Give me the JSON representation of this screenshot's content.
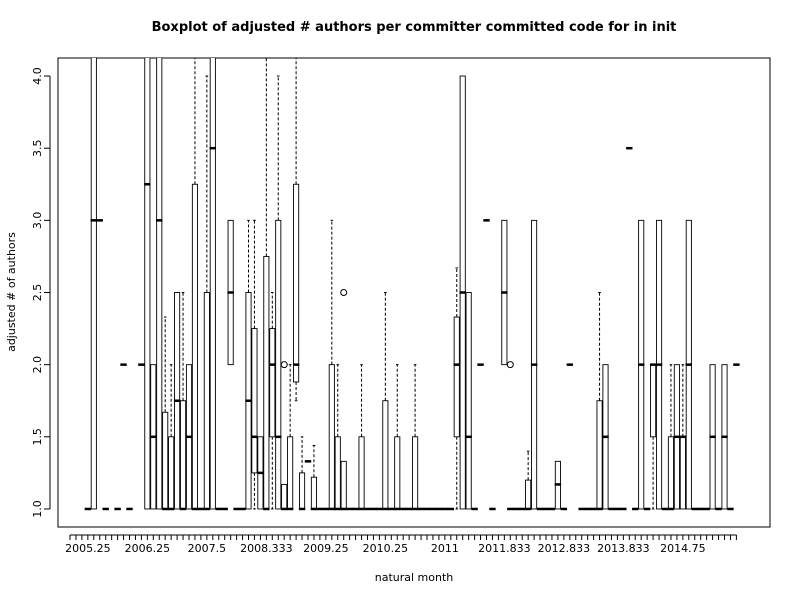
{
  "chart_data": {
    "type": "boxplot",
    "title": "Boxplot of adjusted # authors per committer committed code for in init",
    "x_label": "natural month",
    "y_label": "adjusted # of authors",
    "ylim": [
      0.875,
      4.125
    ],
    "yticks": [
      {
        "value": 1,
        "label": "1.0"
      },
      {
        "value": 1.5,
        "label": "1.5"
      },
      {
        "value": 2,
        "label": "2.0"
      },
      {
        "value": 2.5,
        "label": "2.5"
      },
      {
        "value": 3,
        "label": "3.0"
      },
      {
        "value": 3.5,
        "label": "3.5"
      },
      {
        "value": 4,
        "label": "4.0"
      }
    ],
    "categories": [
      null,
      null,
      null,
      "2005.25",
      null,
      null,
      null,
      null,
      null,
      null,
      null,
      null,
      null,
      "2006.25",
      null,
      null,
      null,
      null,
      null,
      null,
      null,
      null,
      null,
      "2007.5",
      null,
      null,
      null,
      null,
      null,
      null,
      null,
      null,
      null,
      "2008.333",
      null,
      null,
      null,
      null,
      null,
      null,
      null,
      null,
      null,
      "2009.25",
      null,
      null,
      null,
      null,
      null,
      null,
      null,
      null,
      null,
      "2010.25",
      null,
      null,
      null,
      null,
      null,
      null,
      null,
      null,
      null,
      "2011",
      null,
      null,
      null,
      null,
      null,
      null,
      null,
      null,
      null,
      "2011.833",
      null,
      null,
      null,
      null,
      null,
      null,
      null,
      null,
      null,
      "2012.833",
      null,
      null,
      null,
      null,
      null,
      null,
      null,
      null,
      null,
      "2013.833",
      null,
      null,
      null,
      null,
      null,
      null,
      null,
      null,
      null,
      "2014.75",
      null,
      null,
      null,
      null,
      null,
      null,
      null,
      null,
      null
    ],
    "boxes": [
      null,
      null,
      null,
      [
        1,
        1,
        1,
        1,
        1
      ],
      [
        1,
        1,
        3,
        6,
        6
      ],
      [
        3,
        3,
        3,
        3,
        3
      ],
      [
        1,
        1,
        1,
        1,
        1
      ],
      null,
      [
        1,
        1,
        1,
        1,
        1
      ],
      [
        2,
        2,
        2,
        2,
        2
      ],
      [
        1,
        1,
        1,
        1,
        1
      ],
      null,
      [
        2,
        2,
        2,
        2,
        2
      ],
      [
        1,
        1,
        3.25,
        6,
        6
      ],
      [
        1,
        1,
        1.5,
        2,
        2
      ],
      [
        1,
        1,
        3,
        6,
        6
      ],
      [
        1,
        1,
        1,
        1.67,
        2.33
      ],
      [
        1,
        1,
        1,
        1.5,
        2
      ],
      [
        1,
        1,
        1.75,
        2.5,
        2.5
      ],
      [
        1,
        1,
        1,
        1.75,
        2.5
      ],
      [
        1,
        1,
        1.5,
        2,
        2
      ],
      [
        1,
        1,
        1,
        3.25,
        6
      ],
      [
        1,
        1,
        1,
        1,
        1
      ],
      [
        1,
        1,
        1,
        2.5,
        4
      ],
      [
        1,
        1,
        3.5,
        6,
        6
      ],
      [
        1,
        1,
        1,
        1,
        1
      ],
      [
        1,
        1,
        1,
        1,
        1
      ],
      [
        2,
        2,
        2.5,
        3,
        3
      ],
      [
        1,
        1,
        1,
        1,
        1
      ],
      [
        1,
        1,
        1,
        1,
        1
      ],
      [
        1,
        1,
        1.75,
        2.5,
        3
      ],
      [
        1,
        1.25,
        1.5,
        2.25,
        3
      ],
      [
        1,
        1,
        1.25,
        1.5,
        1.5
      ],
      [
        1,
        1,
        1,
        2.75,
        6
      ],
      [
        1,
        1.5,
        2,
        2.25,
        2.5
      ],
      [
        1,
        1,
        1.5,
        3,
        4
      ],
      [
        1,
        1,
        1,
        1.17,
        1.17
      ],
      [
        1,
        1,
        1,
        1.5,
        2
      ],
      [
        1.75,
        1.88,
        2,
        3.25,
        6
      ],
      [
        1,
        1,
        1,
        1.25,
        1.5
      ],
      [
        1.33,
        1.33,
        1.33,
        1.33,
        1.33
      ],
      [
        1,
        1,
        1,
        1.22,
        1.44
      ],
      [
        1,
        1,
        1,
        1,
        1
      ],
      [
        1,
        1,
        1,
        1,
        1
      ],
      [
        1,
        1,
        1,
        2,
        3
      ],
      [
        1,
        1,
        1,
        1.5,
        2
      ],
      [
        1,
        1,
        1,
        1.33,
        1.33
      ],
      [
        1,
        1,
        1,
        1,
        1
      ],
      [
        1,
        1,
        1,
        1,
        1
      ],
      [
        1,
        1,
        1,
        1.5,
        2
      ],
      [
        1,
        1,
        1,
        1,
        1
      ],
      [
        1,
        1,
        1,
        1,
        1
      ],
      [
        1,
        1,
        1,
        1,
        1
      ],
      [
        1,
        1,
        1,
        1.75,
        2.5
      ],
      [
        1,
        1,
        1,
        1,
        1
      ],
      [
        1,
        1,
        1,
        1.5,
        2
      ],
      [
        1,
        1,
        1,
        1,
        1
      ],
      [
        1,
        1,
        1,
        1,
        1
      ],
      [
        1,
        1,
        1,
        1.5,
        2
      ],
      [
        1,
        1,
        1,
        1,
        1
      ],
      [
        1,
        1,
        1,
        1,
        1
      ],
      [
        1,
        1,
        1,
        1,
        1
      ],
      [
        1,
        1,
        1,
        1,
        1
      ],
      [
        1,
        1,
        1,
        1,
        1
      ],
      [
        1,
        1,
        1,
        1,
        1
      ],
      [
        1,
        1.5,
        2,
        2.33,
        2.67
      ],
      [
        1,
        1,
        2.5,
        4,
        4
      ],
      [
        1,
        1,
        1.5,
        2.5,
        2.5
      ],
      [
        1,
        1,
        1,
        1,
        1
      ],
      [
        2,
        2,
        2,
        2,
        2
      ],
      [
        3,
        3,
        3,
        3,
        3
      ],
      [
        1,
        1,
        1,
        1,
        1
      ],
      null,
      [
        2,
        2,
        2.5,
        3,
        3
      ],
      [
        1,
        1,
        1,
        1,
        1
      ],
      [
        1,
        1,
        1,
        1,
        1
      ],
      [
        1,
        1,
        1,
        1,
        1
      ],
      [
        1,
        1,
        1,
        1.2,
        1.4
      ],
      [
        1,
        1,
        2,
        3,
        3
      ],
      [
        1,
        1,
        1,
        1,
        1
      ],
      [
        1,
        1,
        1,
        1,
        1
      ],
      [
        1,
        1,
        1,
        1,
        1
      ],
      [
        1,
        1,
        1.17,
        1.33,
        1.33
      ],
      [
        1,
        1,
        1,
        1,
        1
      ],
      [
        2,
        2,
        2,
        2,
        2
      ],
      null,
      [
        1,
        1,
        1,
        1,
        1
      ],
      [
        1,
        1,
        1,
        1,
        1
      ],
      [
        1,
        1,
        1,
        1,
        1
      ],
      [
        1,
        1,
        1,
        1.75,
        2.5
      ],
      [
        1,
        1,
        1.5,
        2,
        2
      ],
      [
        1,
        1,
        1,
        1,
        1
      ],
      [
        1,
        1,
        1,
        1,
        1
      ],
      [
        1,
        1,
        1,
        1,
        1
      ],
      [
        3.5,
        3.5,
        3.5,
        3.5,
        3.5
      ],
      [
        1,
        1,
        1,
        1,
        1
      ],
      [
        1,
        1,
        2,
        3,
        3
      ],
      [
        1,
        1,
        1,
        1,
        1
      ],
      [
        1,
        1.5,
        2,
        2,
        2
      ],
      [
        1,
        1,
        2,
        3,
        3
      ],
      [
        1,
        1,
        1,
        1,
        1
      ],
      [
        1,
        1,
        1,
        1.5,
        2
      ],
      [
        1,
        1,
        1.5,
        2,
        2
      ],
      [
        1,
        1,
        1.5,
        1.5,
        2
      ],
      [
        1,
        1,
        2,
        3,
        3
      ],
      [
        1,
        1,
        1,
        1,
        1
      ],
      [
        1,
        1,
        1,
        1,
        1
      ],
      [
        1,
        1,
        1,
        1,
        1
      ],
      [
        1,
        1,
        1.5,
        2,
        2
      ],
      [
        1,
        1,
        1,
        1,
        1
      ],
      [
        1,
        1,
        1.5,
        2,
        2
      ],
      [
        1,
        1,
        1,
        1,
        1
      ],
      [
        2,
        2,
        2,
        2,
        2
      ]
    ],
    "outliers": [
      {
        "at": 36,
        "value": 2
      },
      {
        "at": 46,
        "value": 2.5
      },
      {
        "at": 74,
        "value": 2
      }
    ]
  }
}
